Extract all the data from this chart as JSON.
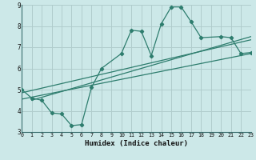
{
  "xlabel": "Humidex (Indice chaleur)",
  "bg_color": "#cce8e8",
  "grid_color": "#b0cccc",
  "line_color": "#2e7d6e",
  "axis_bar_color": "#3a6e6e",
  "xlim": [
    0,
    23
  ],
  "ylim": [
    3,
    9
  ],
  "xticks": [
    0,
    1,
    2,
    3,
    4,
    5,
    6,
    7,
    8,
    9,
    10,
    11,
    12,
    13,
    14,
    15,
    16,
    17,
    18,
    19,
    20,
    21,
    22,
    23
  ],
  "yticks": [
    3,
    4,
    5,
    6,
    7,
    8,
    9
  ],
  "zigzag_x": [
    0,
    1,
    2,
    3,
    4,
    5,
    6,
    7,
    8,
    10,
    11,
    12,
    13,
    14,
    15,
    16,
    17,
    18,
    20,
    21,
    22,
    23
  ],
  "zigzag_y": [
    5.0,
    4.6,
    4.5,
    3.9,
    3.85,
    3.3,
    3.35,
    5.1,
    6.0,
    6.7,
    7.8,
    7.75,
    6.6,
    8.1,
    8.9,
    8.9,
    8.2,
    7.45,
    7.5,
    7.45,
    6.7,
    6.75
  ],
  "line1_x": [
    0,
    23
  ],
  "line1_y": [
    4.85,
    7.35
  ],
  "line2_x": [
    0,
    23
  ],
  "line2_y": [
    4.55,
    6.7
  ],
  "line3_x": [
    1,
    23
  ],
  "line3_y": [
    4.5,
    7.5
  ]
}
